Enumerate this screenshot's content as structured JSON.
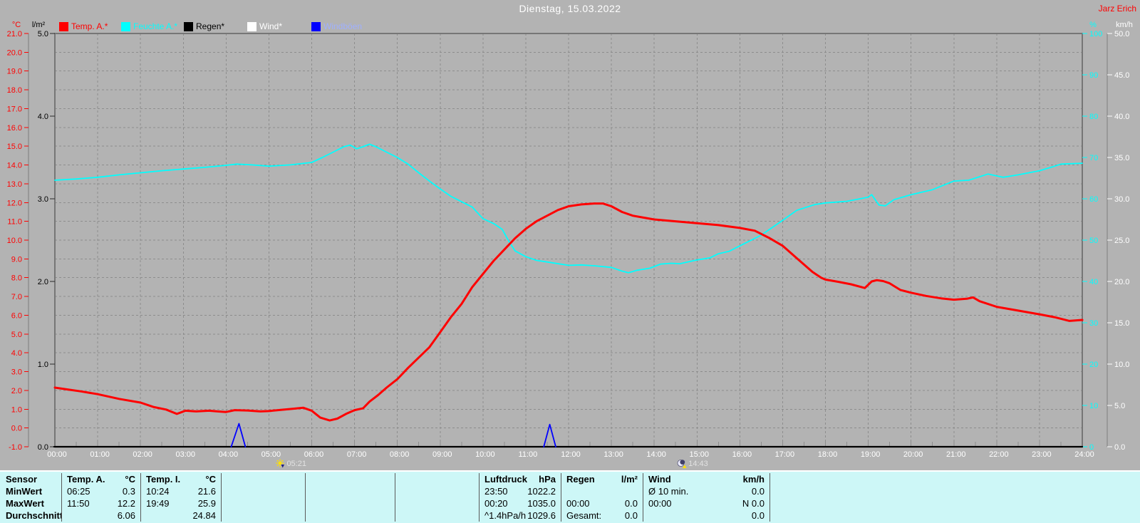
{
  "header": {
    "title": "Dienstag, 15.03.2022",
    "author": "Jarz Erich"
  },
  "legend": [
    {
      "label": "Temp. A.*",
      "swatch": "#ff0000",
      "text_color": "#ff0000"
    },
    {
      "label": "Feuchte A.*",
      "swatch": "#00ffff",
      "text_color": "#00ffff"
    },
    {
      "label": "Regen*",
      "swatch": "#000000",
      "text_color": "#000000"
    },
    {
      "label": "Wind*",
      "swatch": "#ffffff",
      "text_color": "#ffffff"
    },
    {
      "label": "Windböen",
      "swatch": "#0000ff",
      "text_color": "#9fb0ff"
    }
  ],
  "markers": [
    {
      "time": "05:21",
      "icon": "sun-set-icon"
    },
    {
      "time": "14:43",
      "icon": "moon-rise-icon"
    }
  ],
  "chart_data": {
    "type": "line",
    "title": "Dienstag, 15.03.2022",
    "grid": true,
    "x_axis": {
      "range_hours": [
        0,
        24
      ],
      "tick_labels": [
        "00:00",
        "01:00",
        "02:00",
        "03:00",
        "04:00",
        "05:00",
        "06:00",
        "07:00",
        "08:00",
        "09:00",
        "10:00",
        "11:00",
        "12:00",
        "13:00",
        "14:00",
        "15:00",
        "16:00",
        "17:00",
        "18:00",
        "19:00",
        "20:00",
        "21:00",
        "22:00",
        "23:00",
        "24:00"
      ]
    },
    "axes": {
      "temp_c": {
        "unit": "°C",
        "color": "#ff0000",
        "side": "left-outer",
        "min": -1,
        "max": 21,
        "tick_values": [
          21,
          20,
          19,
          18,
          17,
          16,
          15,
          14,
          13,
          12,
          11,
          10,
          9,
          8,
          7,
          6,
          5,
          4,
          3,
          2,
          1,
          0,
          -1
        ],
        "tick_labels": [
          "21.0",
          "20.0",
          "19.0",
          "18.0",
          "17.0",
          "16.0",
          "15.0",
          "14.0",
          "13.0",
          "12.0",
          "11.0",
          "10.0",
          "9.0",
          "8.0",
          "7.0",
          "6.0",
          "5.0",
          "4.0",
          "3.0",
          "2.0",
          "1.0",
          "0.0",
          "-1.0"
        ]
      },
      "rain_lm2": {
        "unit": "l/m²",
        "color": "#000000",
        "side": "left-inner",
        "min": 0,
        "max": 5,
        "tick_values": [
          5,
          4,
          3,
          2,
          1,
          0
        ],
        "tick_labels": [
          "5.0",
          "4.0",
          "3.0",
          "2.0",
          "1.0",
          "0.0"
        ]
      },
      "humidity_pct": {
        "unit": "%",
        "color": "#00ffff",
        "side": "right-inner",
        "min": 0,
        "max": 100,
        "tick_values": [
          100,
          90,
          80,
          70,
          60,
          50,
          40,
          30,
          20,
          10,
          0
        ],
        "tick_labels": [
          "100",
          "90",
          "80",
          "70",
          "60",
          "50",
          "40",
          "30",
          "20",
          "10",
          "0"
        ]
      },
      "wind_kmh": {
        "unit": "km/h",
        "color": "#ffffff",
        "side": "right-outer",
        "min": 0,
        "max": 50,
        "tick_values": [
          50,
          45,
          40,
          35,
          30,
          25,
          20,
          15,
          10,
          5,
          0
        ],
        "tick_labels": [
          "50.0",
          "45.0",
          "40.0",
          "35.0",
          "30.0",
          "25.0",
          "20.0",
          "15.0",
          "10.0",
          "5.0",
          "0.0"
        ]
      }
    },
    "series": [
      {
        "name": "Temp. A.*",
        "axis": "temp_c",
        "color": "#ff0000",
        "points": [
          [
            0,
            2.15
          ],
          [
            0.3,
            2.05
          ],
          [
            0.6,
            1.95
          ],
          [
            1,
            1.8
          ],
          [
            1.5,
            1.55
          ],
          [
            2,
            1.35
          ],
          [
            2.3,
            1.12
          ],
          [
            2.6,
            0.98
          ],
          [
            2.85,
            0.75
          ],
          [
            3.05,
            0.92
          ],
          [
            3.3,
            0.88
          ],
          [
            3.6,
            0.92
          ],
          [
            3.8,
            0.88
          ],
          [
            4,
            0.85
          ],
          [
            4.2,
            0.95
          ],
          [
            4.5,
            0.93
          ],
          [
            4.8,
            0.88
          ],
          [
            5,
            0.9
          ],
          [
            5.3,
            0.97
          ],
          [
            5.55,
            1.02
          ],
          [
            5.8,
            1.08
          ],
          [
            6,
            0.92
          ],
          [
            6.2,
            0.55
          ],
          [
            6.42,
            0.4
          ],
          [
            6.6,
            0.5
          ],
          [
            6.8,
            0.75
          ],
          [
            7,
            0.95
          ],
          [
            7.2,
            1.05
          ],
          [
            7.35,
            1.4
          ],
          [
            7.55,
            1.75
          ],
          [
            7.75,
            2.15
          ],
          [
            8,
            2.6
          ],
          [
            8.25,
            3.2
          ],
          [
            8.5,
            3.75
          ],
          [
            8.75,
            4.3
          ],
          [
            9,
            5.1
          ],
          [
            9.25,
            5.9
          ],
          [
            9.5,
            6.6
          ],
          [
            9.75,
            7.5
          ],
          [
            10,
            8.2
          ],
          [
            10.25,
            8.9
          ],
          [
            10.5,
            9.5
          ],
          [
            10.75,
            10.1
          ],
          [
            11,
            10.6
          ],
          [
            11.25,
            11
          ],
          [
            11.5,
            11.3
          ],
          [
            11.75,
            11.6
          ],
          [
            12,
            11.8
          ],
          [
            12.3,
            11.9
          ],
          [
            12.6,
            11.95
          ],
          [
            12.8,
            11.95
          ],
          [
            13,
            11.8
          ],
          [
            13.25,
            11.5
          ],
          [
            13.5,
            11.3
          ],
          [
            13.75,
            11.2
          ],
          [
            14,
            11.1
          ],
          [
            14.5,
            11
          ],
          [
            15,
            10.9
          ],
          [
            15.5,
            10.8
          ],
          [
            16,
            10.65
          ],
          [
            16.35,
            10.5
          ],
          [
            16.7,
            10.1
          ],
          [
            17,
            9.7
          ],
          [
            17.35,
            9
          ],
          [
            17.7,
            8.3
          ],
          [
            17.9,
            8
          ],
          [
            18,
            7.9
          ],
          [
            18.3,
            7.78
          ],
          [
            18.6,
            7.65
          ],
          [
            18.92,
            7.45
          ],
          [
            19.08,
            7.8
          ],
          [
            19.2,
            7.87
          ],
          [
            19.35,
            7.82
          ],
          [
            19.5,
            7.7
          ],
          [
            19.75,
            7.35
          ],
          [
            20,
            7.2
          ],
          [
            20.35,
            7.03
          ],
          [
            20.7,
            6.9
          ],
          [
            21,
            6.83
          ],
          [
            21.3,
            6.88
          ],
          [
            21.45,
            6.95
          ],
          [
            21.6,
            6.75
          ],
          [
            22,
            6.45
          ],
          [
            22.5,
            6.25
          ],
          [
            23,
            6.05
          ],
          [
            23.35,
            5.9
          ],
          [
            23.7,
            5.7
          ],
          [
            24,
            5.75
          ]
        ]
      },
      {
        "name": "Feuchte A.*",
        "axis": "humidity_pct",
        "color": "#00ffff",
        "points": [
          [
            0,
            64.5
          ],
          [
            0.5,
            64.8
          ],
          [
            1,
            65.2
          ],
          [
            1.5,
            65.8
          ],
          [
            2,
            66.3
          ],
          [
            2.5,
            66.8
          ],
          [
            3,
            67.2
          ],
          [
            3.5,
            67.6
          ],
          [
            4,
            68.1
          ],
          [
            4.25,
            68.4
          ],
          [
            4.6,
            68.2
          ],
          [
            5,
            67.9
          ],
          [
            5.5,
            68.2
          ],
          [
            6,
            68.8
          ],
          [
            6.25,
            70
          ],
          [
            6.5,
            71.3
          ],
          [
            6.75,
            72.6
          ],
          [
            6.9,
            73
          ],
          [
            7.05,
            72.1
          ],
          [
            7.2,
            72.6
          ],
          [
            7.35,
            73.2
          ],
          [
            7.5,
            72.6
          ],
          [
            7.75,
            71.3
          ],
          [
            8,
            70
          ],
          [
            8.25,
            68.4
          ],
          [
            8.5,
            66.3
          ],
          [
            8.75,
            64.3
          ],
          [
            9,
            62.4
          ],
          [
            9.25,
            60.6
          ],
          [
            9.5,
            59.3
          ],
          [
            9.75,
            58
          ],
          [
            10,
            55.2
          ],
          [
            10.25,
            54
          ],
          [
            10.45,
            52.6
          ],
          [
            10.6,
            49.8
          ],
          [
            10.75,
            47.4
          ],
          [
            11,
            46
          ],
          [
            11.25,
            45.1
          ],
          [
            11.5,
            44.7
          ],
          [
            12,
            43.9
          ],
          [
            12.3,
            44
          ],
          [
            12.6,
            43.8
          ],
          [
            13,
            43.4
          ],
          [
            13.25,
            42.5
          ],
          [
            13.4,
            42.1
          ],
          [
            13.6,
            42.7
          ],
          [
            13.9,
            43.2
          ],
          [
            14.15,
            44.2
          ],
          [
            14.4,
            44.4
          ],
          [
            14.6,
            44.3
          ],
          [
            15,
            45.2
          ],
          [
            15.3,
            45.7
          ],
          [
            15.5,
            46.7
          ],
          [
            15.75,
            47.3
          ],
          [
            16,
            48.6
          ],
          [
            16.5,
            51.2
          ],
          [
            17,
            54.8
          ],
          [
            17.33,
            57.2
          ],
          [
            17.75,
            58.6
          ],
          [
            18,
            59
          ],
          [
            18.5,
            59.4
          ],
          [
            19,
            60.4
          ],
          [
            19.08,
            61
          ],
          [
            19.25,
            58.5
          ],
          [
            19.4,
            58.3
          ],
          [
            19.6,
            59.8
          ],
          [
            20,
            61
          ],
          [
            20.5,
            62.2
          ],
          [
            21,
            64.3
          ],
          [
            21.35,
            64.5
          ],
          [
            21.8,
            66
          ],
          [
            22.15,
            65.2
          ],
          [
            22.5,
            65.8
          ],
          [
            23,
            66.8
          ],
          [
            23.3,
            67.7
          ],
          [
            23.5,
            68.4
          ],
          [
            24,
            68.6
          ]
        ]
      },
      {
        "name": "Regen*",
        "axis": "rain_lm2",
        "color": "#000000",
        "points": [
          [
            0,
            0
          ],
          [
            24,
            0
          ]
        ]
      },
      {
        "name": "Wind*",
        "axis": "wind_kmh",
        "color": "#ffffff",
        "points": [
          [
            0,
            0
          ],
          [
            24,
            0
          ]
        ]
      },
      {
        "name": "Windböen",
        "axis": "wind_kmh",
        "color": "#0000ff",
        "segments": [
          [
            [
              4.12,
              0
            ],
            [
              4.3,
              2.8
            ],
            [
              4.45,
              0
            ]
          ],
          [
            [
              11.42,
              0
            ],
            [
              11.56,
              2.7
            ],
            [
              11.7,
              0
            ]
          ]
        ]
      }
    ]
  },
  "table": {
    "row_labels": [
      "Sensor",
      "MinWert",
      "MaxWert",
      "Durchschnitt"
    ],
    "columns": [
      {
        "name": "Temp. A.",
        "unit": "°C",
        "rows": [
          [
            "06:25",
            "0.3"
          ],
          [
            "11:50",
            "12.2"
          ],
          [
            "",
            "6.06"
          ]
        ]
      },
      {
        "name": "Temp. I.",
        "unit": "°C",
        "rows": [
          [
            "10:24",
            "21.6"
          ],
          [
            "19:49",
            "25.9"
          ],
          [
            "",
            "24.84"
          ]
        ]
      },
      {
        "name": "",
        "unit": "",
        "rows": [
          [
            "",
            ""
          ],
          [
            "",
            ""
          ],
          [
            "",
            ""
          ]
        ]
      },
      {
        "name": "",
        "unit": "",
        "rows": [
          [
            "",
            ""
          ],
          [
            "",
            ""
          ],
          [
            "",
            ""
          ]
        ]
      },
      {
        "name": "",
        "unit": "",
        "rows": [
          [
            "",
            ""
          ],
          [
            "",
            ""
          ],
          [
            "",
            ""
          ]
        ]
      },
      {
        "name": "Luftdruck",
        "unit": "hPa",
        "rows": [
          [
            "23:50",
            "1022.2"
          ],
          [
            "00:20",
            "1035.0"
          ],
          [
            "^1.4hPa/h",
            "1029.6"
          ]
        ]
      },
      {
        "name": "Regen",
        "unit": "l/m²",
        "rows": [
          [
            "",
            ""
          ],
          [
            "00:00",
            "0.0"
          ],
          [
            "Gesamt:",
            "0.0"
          ]
        ]
      },
      {
        "name": "Wind",
        "unit": "km/h",
        "rows": [
          [
            "Ø 10 min.",
            "0.0"
          ],
          [
            "00:00",
            "N 0.0"
          ],
          [
            "",
            "0.0"
          ]
        ]
      },
      {
        "name": "",
        "unit": "",
        "rows": [
          [
            "",
            ""
          ],
          [
            "",
            ""
          ],
          [
            "",
            ""
          ]
        ]
      }
    ]
  }
}
